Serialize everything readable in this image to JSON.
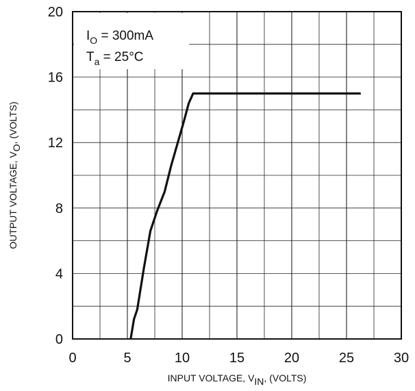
{
  "chart_data": {
    "type": "line",
    "title": "",
    "xlabel": {
      "main": "INPUT VOLTAGE, V",
      "sub": "IN",
      "suffix": ", (VOLTS)"
    },
    "ylabel": {
      "main": "OUTPUT VOLTAGE, V",
      "sub": "O",
      "suffix": ", (VOLTS)"
    },
    "xlim": [
      0,
      30
    ],
    "ylim": [
      0,
      20
    ],
    "x_ticks": [
      0,
      5,
      10,
      15,
      20,
      25,
      30
    ],
    "x_tick_labels": [
      "0",
      "5",
      "10",
      "15",
      "20",
      "25",
      "30"
    ],
    "y_ticks": [
      0,
      4,
      8,
      12,
      16,
      20
    ],
    "y_tick_labels": [
      "0",
      "4",
      "8",
      "12",
      "16",
      "20"
    ],
    "grid": true,
    "grid_x_step": 2.5,
    "grid_y_step": 2,
    "series": [
      {
        "x": [
          5.3,
          5.6,
          5.9,
          6.5,
          7.1,
          7.7,
          8.4,
          9.0,
          9.6,
          10.2,
          10.6,
          11.0,
          14.0,
          18.0,
          22.0,
          26.3
        ],
        "y": [
          0,
          1.2,
          1.8,
          4.3,
          6.6,
          7.8,
          9.0,
          10.6,
          12.0,
          13.4,
          14.4,
          15.0,
          15.0,
          15.0,
          15.0,
          15.0
        ]
      }
    ],
    "annotations": [
      {
        "main": "I",
        "sub": "O",
        "suffix": " = 300mA"
      },
      {
        "main": "T",
        "sub": "a",
        "suffix": " = 25°C"
      }
    ]
  }
}
